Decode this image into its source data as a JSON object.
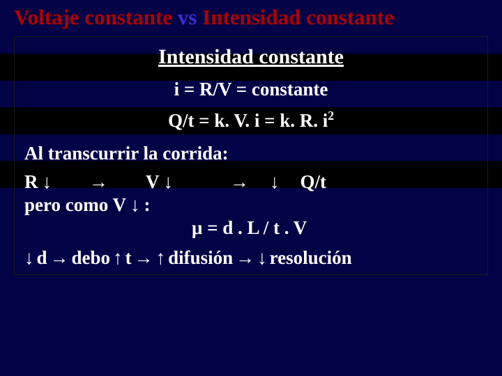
{
  "colors": {
    "stripe_navy": "#020246",
    "stripe_black": "#000000",
    "title_red": "#b00000",
    "title_blue": "#3d2ed6",
    "body_text": "#ffffff",
    "box_border": "#1a1a1a"
  },
  "typography": {
    "family": "Times New Roman",
    "title_size_pt": 23,
    "body_size_pt": 20,
    "weight": "bold"
  },
  "arrows": {
    "down": "↓",
    "right": "→",
    "up": "↑"
  },
  "title": {
    "part1": "Voltaje constante ",
    "part2": "vs ",
    "part3": "Intensidad constante"
  },
  "box": {
    "subheading": "Intensidad constante",
    "eq1": "i = R/V = constante",
    "eq2_pre": "Q/t = k. V. i = k. R. i",
    "eq2_sup": "2",
    "run_label": "Al transcurrir la  corrida:",
    "line_rv": {
      "R": "R",
      "V": "V",
      "Qt": "Q/t"
    },
    "line_pero": {
      "text_a": "pero como V",
      "text_b": ":"
    },
    "line_mu": {
      "mu": "μ",
      "rest": "  = d .  L  / t .  V"
    },
    "final": {
      "d": " d ",
      "debo": " debo ",
      "t": " t ",
      "dif": " difusión ",
      "res": " resolución"
    }
  }
}
